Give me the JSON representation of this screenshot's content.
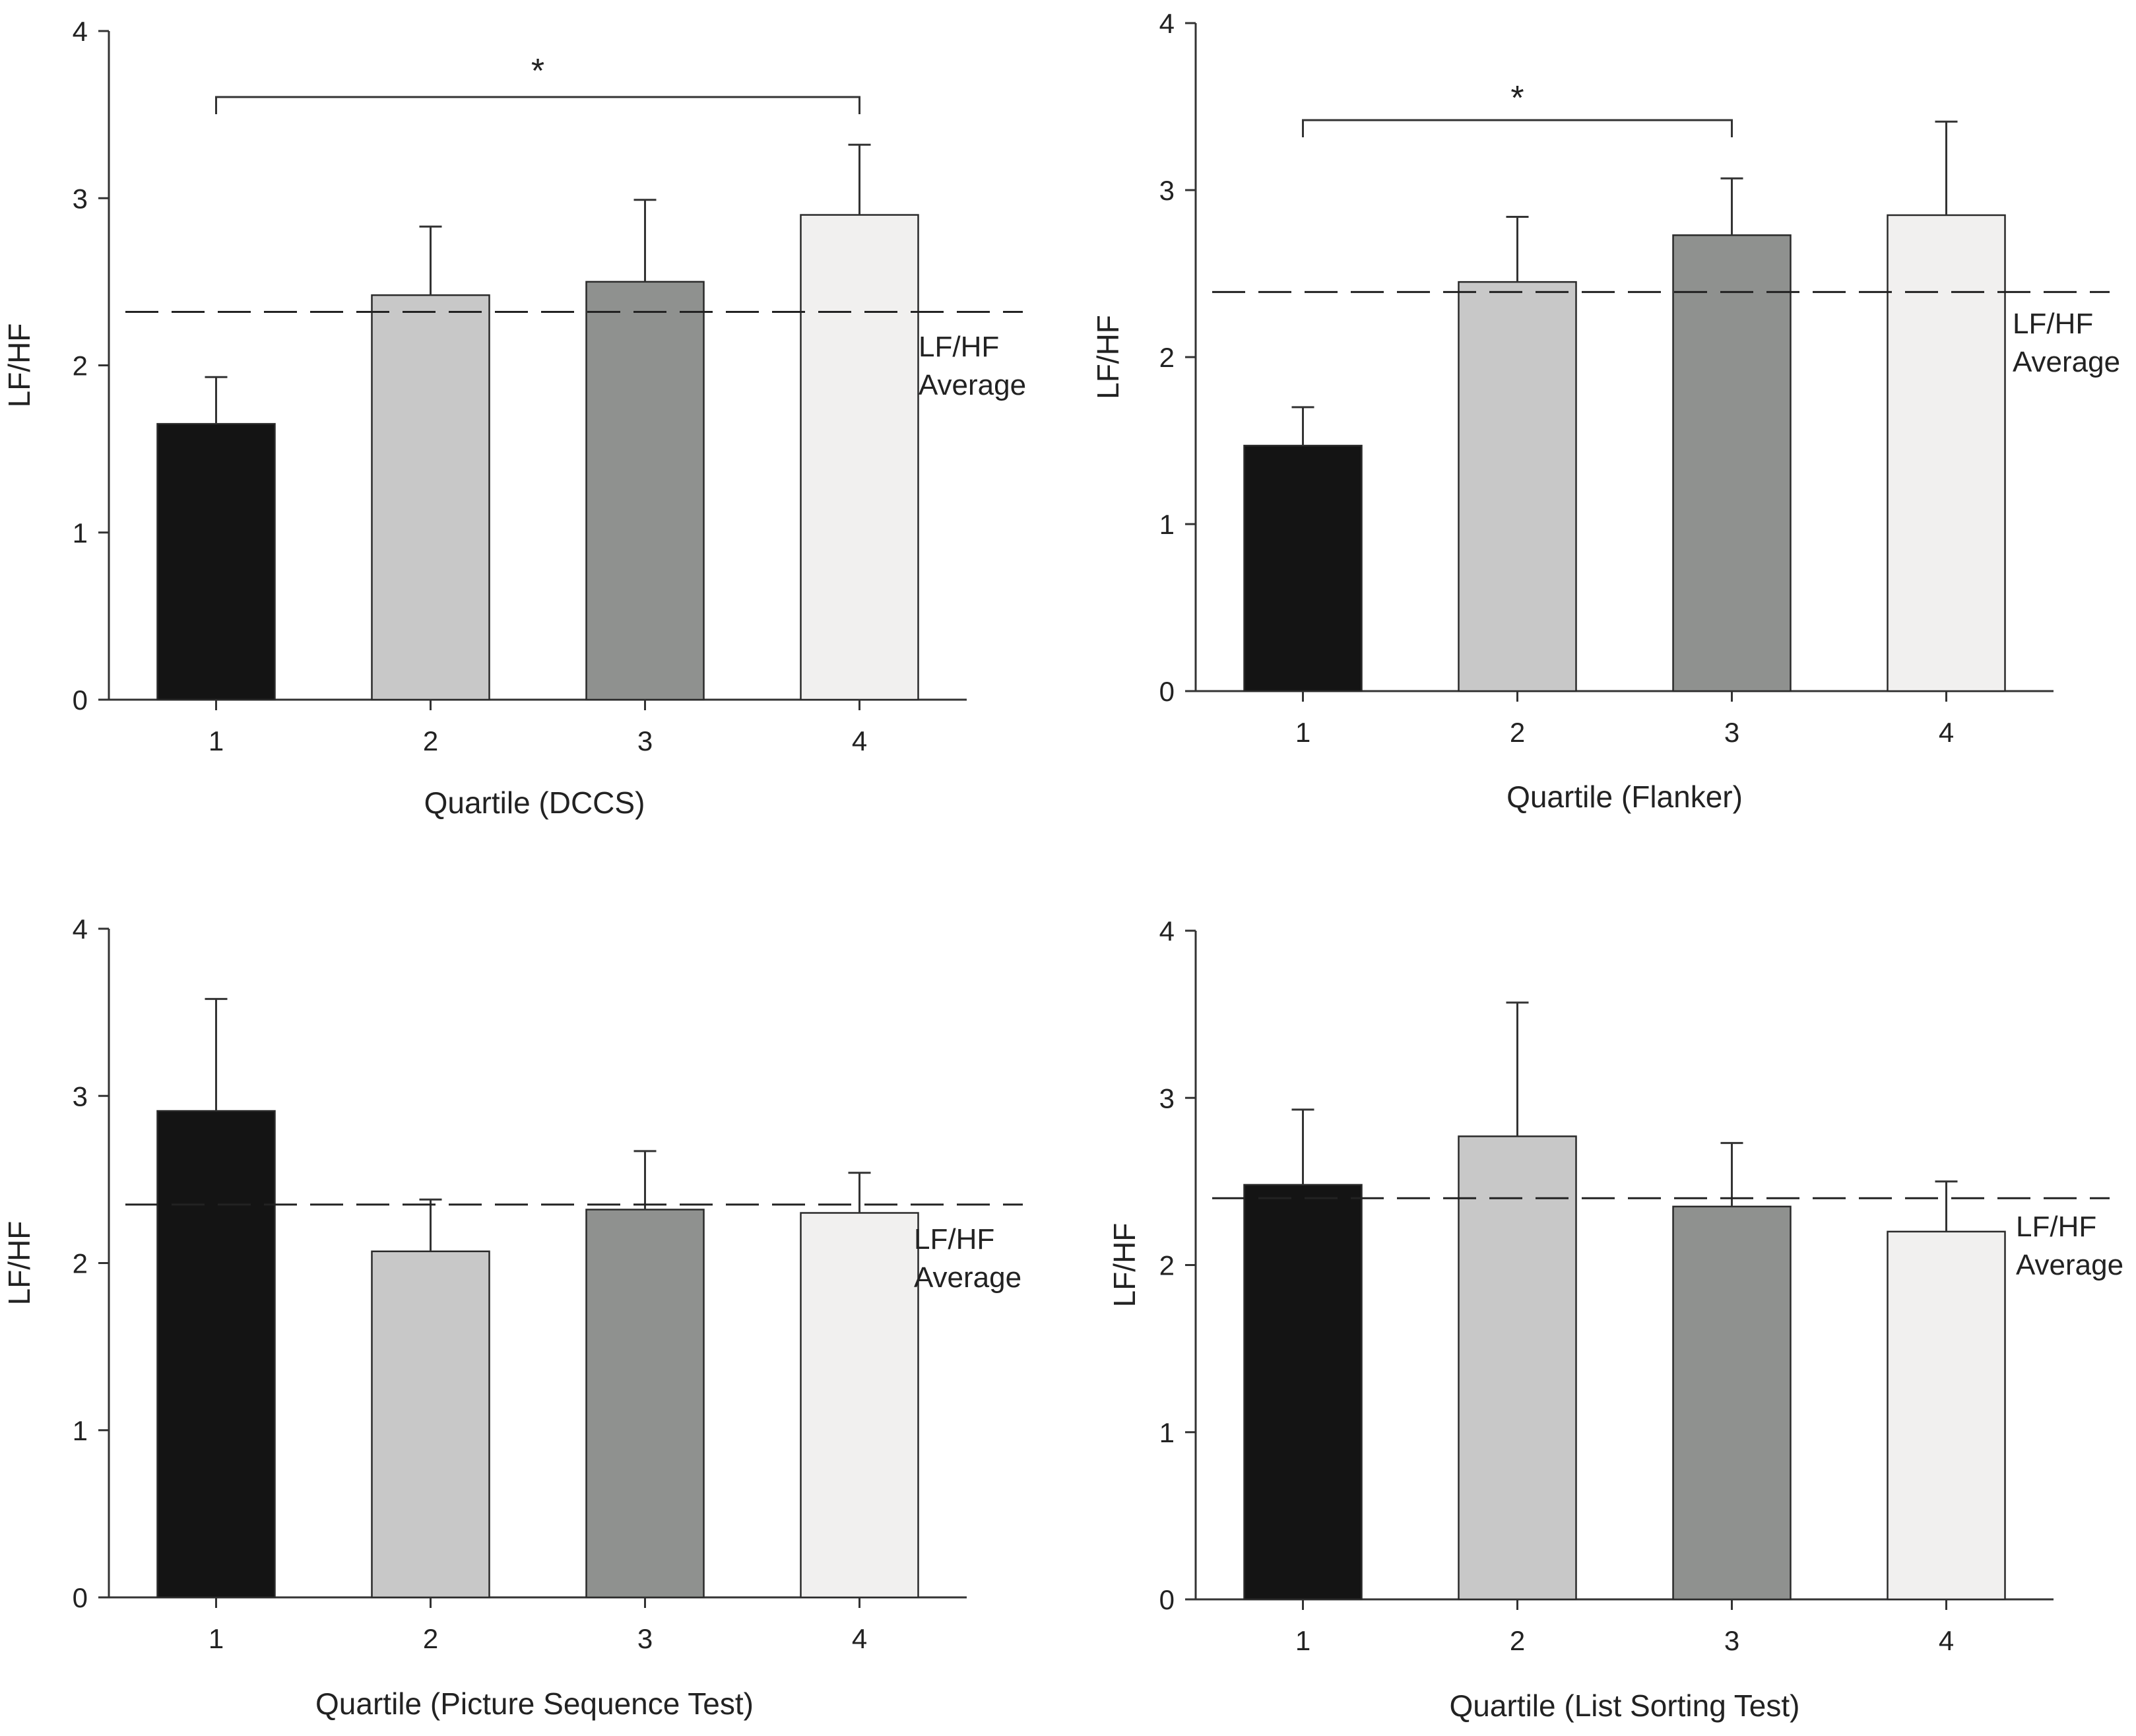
{
  "figure": {
    "description_free": true
  },
  "chart_data": [
    {
      "type": "bar",
      "categories": [
        "1",
        "2",
        "3",
        "4"
      ],
      "values": [
        1.65,
        2.42,
        2.5,
        2.9
      ],
      "error_upper": [
        0.28,
        0.41,
        0.49,
        0.42
      ],
      "bar_colors": [
        "#141414",
        "#c8c8c8",
        "#8f918f",
        "#f1f0ef"
      ],
      "xlabel": "Quartile (DCCS)",
      "ylabel": "LF/HF",
      "ylim": [
        0,
        4
      ],
      "yticks": [
        "0",
        "1",
        "2",
        "3",
        "4"
      ],
      "reference_line": {
        "value": 2.32,
        "style": "dashed",
        "label_lines": [
          "LF/HF",
          "Average"
        ]
      },
      "significance": {
        "from": "1",
        "to": "4",
        "label": "*"
      }
    },
    {
      "type": "bar",
      "categories": [
        "1",
        "2",
        "3",
        "4"
      ],
      "values": [
        1.47,
        2.45,
        2.73,
        2.85
      ],
      "error_upper": [
        0.23,
        0.39,
        0.34,
        0.56
      ],
      "bar_colors": [
        "#141414",
        "#c8c8c8",
        "#8f918f",
        "#f1f0ef"
      ],
      "xlabel": "Quartile (Flanker)",
      "ylabel": "LF/HF",
      "ylim": [
        0,
        4
      ],
      "yticks": [
        "0",
        "1",
        "2",
        "3",
        "4"
      ],
      "reference_line": {
        "value": 2.39,
        "style": "dashed",
        "label_lines": [
          "LF/HF",
          "Average"
        ]
      },
      "significance": {
        "from": "1",
        "to": "3",
        "label": "*"
      }
    },
    {
      "type": "bar",
      "categories": [
        "1",
        "2",
        "3",
        "4"
      ],
      "values": [
        2.91,
        2.07,
        2.32,
        2.3
      ],
      "error_upper": [
        0.67,
        0.31,
        0.35,
        0.24
      ],
      "bar_colors": [
        "#141414",
        "#c8c8c8",
        "#8f918f",
        "#f1f0ef"
      ],
      "xlabel": "Quartile (Picture Sequence Test)",
      "ylabel": "LF/HF",
      "ylim": [
        0,
        4
      ],
      "yticks": [
        "0",
        "1",
        "2",
        "3",
        "4"
      ],
      "reference_line": {
        "value": 2.35,
        "style": "dashed",
        "label_lines": [
          "LF/HF",
          "Average"
        ]
      },
      "significance": null
    },
    {
      "type": "bar",
      "categories": [
        "1",
        "2",
        "3",
        "4"
      ],
      "values": [
        2.48,
        2.77,
        2.35,
        2.2
      ],
      "error_upper": [
        0.45,
        0.8,
        0.38,
        0.3
      ],
      "bar_colors": [
        "#141414",
        "#c8c8c8",
        "#8f918f",
        "#f1f0ef"
      ],
      "xlabel": "Quartile (List Sorting Test)",
      "ylabel": "LF/HF",
      "ylim": [
        0,
        4
      ],
      "yticks": [
        "0",
        "1",
        "2",
        "3",
        "4"
      ],
      "reference_line": {
        "value": 2.4,
        "style": "dashed",
        "label_lines": [
          "LF/HF",
          "Average"
        ]
      },
      "significance": null
    }
  ]
}
